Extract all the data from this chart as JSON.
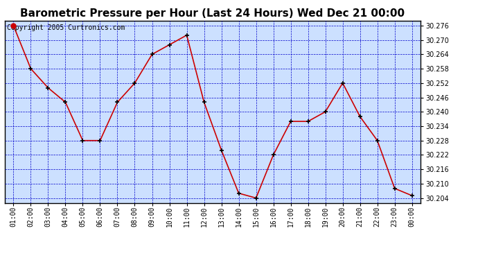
{
  "title": "Barometric Pressure per Hour (Last 24 Hours) Wed Dec 21 00:00",
  "copyright": "Copyright 2005 Curtronics.com",
  "hours": [
    "01:00",
    "02:00",
    "03:00",
    "04:00",
    "05:00",
    "06:00",
    "07:00",
    "08:00",
    "09:00",
    "10:00",
    "11:00",
    "12:00",
    "13:00",
    "14:00",
    "15:00",
    "16:00",
    "17:00",
    "18:00",
    "19:00",
    "20:00",
    "21:00",
    "22:00",
    "23:00",
    "00:00"
  ],
  "values": [
    30.276,
    30.258,
    30.25,
    30.244,
    30.228,
    30.228,
    30.244,
    30.252,
    30.264,
    30.268,
    30.272,
    30.244,
    30.224,
    30.206,
    30.204,
    30.222,
    30.236,
    30.236,
    30.24,
    30.252,
    30.238,
    30.228,
    30.208,
    30.205
  ],
  "ylim_min": 30.202,
  "ylim_max": 30.278,
  "ytick_start": 30.204,
  "ytick_end": 30.276,
  "ytick_step": 0.006,
  "line_color": "#cc0000",
  "marker_color": "#000000",
  "bg_color": "#cce0ff",
  "grid_color": "#0000cc",
  "title_fontsize": 11,
  "copyright_fontsize": 7,
  "tick_fontsize": 7
}
